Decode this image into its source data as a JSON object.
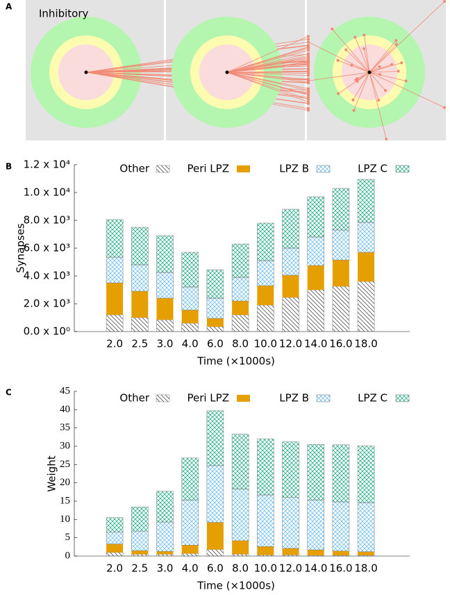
{
  "panel_a": {
    "label": "A",
    "caption": "Inhibitory"
  },
  "chart_data": [
    {
      "type": "stacked_bar",
      "panel_label": "B",
      "ylabel": "Synapses",
      "xlabel": "Time (×1000s)",
      "categories": [
        "2.0",
        "2.5",
        "3.0",
        "4.0",
        "6.0",
        "8.0",
        "10.0",
        "12.0",
        "14.0",
        "16.0",
        "18.0"
      ],
      "ylim": [
        0,
        12000
      ],
      "yticks": [
        {
          "value": 0,
          "label": "0.0 x 10⁰"
        },
        {
          "value": 2000,
          "label": "2.0 x 10³"
        },
        {
          "value": 4000,
          "label": "4.0 x 10³"
        },
        {
          "value": 6000,
          "label": "6.0 x 10³"
        },
        {
          "value": 8000,
          "label": "8.0 x 10³"
        },
        {
          "value": 10000,
          "label": "1.0 x 10⁴"
        },
        {
          "value": 12000,
          "label": "1.2 x 10⁴"
        }
      ],
      "series": [
        {
          "name": "Other",
          "color": "#333333",
          "hatch": "diagonal",
          "values": [
            1200,
            1000,
            850,
            600,
            350,
            1200,
            1900,
            2450,
            3000,
            3250,
            3600
          ]
        },
        {
          "name": "Peri LPZ",
          "color": "#e69f00",
          "hatch": "solid",
          "values": [
            2300,
            1900,
            1550,
            950,
            600,
            1000,
            1400,
            1600,
            1750,
            1900,
            2100
          ]
        },
        {
          "name": "LPZ B",
          "color": "#56b4e9",
          "hatch": "cross",
          "values": [
            1850,
            1900,
            1850,
            1650,
            1450,
            1700,
            1800,
            1950,
            2050,
            2150,
            2150
          ]
        },
        {
          "name": "LPZ C",
          "color": "#009e73",
          "hatch": "cross",
          "values": [
            2700,
            2700,
            2650,
            2500,
            2050,
            2400,
            2700,
            2800,
            2900,
            3000,
            3100
          ]
        }
      ]
    },
    {
      "type": "stacked_bar",
      "panel_label": "C",
      "ylabel": "Weight",
      "xlabel": "Time (×1000s)",
      "categories": [
        "2.0",
        "2.5",
        "3.0",
        "4.0",
        "6.0",
        "8.0",
        "10.0",
        "12.0",
        "14.0",
        "16.0",
        "18.0"
      ],
      "ylim": [
        0,
        45
      ],
      "yticks": [
        0,
        5,
        10,
        15,
        20,
        25,
        30,
        35,
        40,
        45
      ],
      "series": [
        {
          "name": "Other",
          "color": "#333333",
          "hatch": "diagonal",
          "values": [
            1.0,
            0.5,
            0.5,
            0.7,
            1.8,
            0.5,
            0.3,
            0.3,
            0.2,
            0.2,
            0.2
          ]
        },
        {
          "name": "Peri LPZ",
          "color": "#e69f00",
          "hatch": "solid",
          "values": [
            2.3,
            1.0,
            0.8,
            2.3,
            7.4,
            3.7,
            2.3,
            1.8,
            1.5,
            1.2,
            1.0
          ]
        },
        {
          "name": "LPZ B",
          "color": "#56b4e9",
          "hatch": "cross",
          "values": [
            3.2,
            5.3,
            8.0,
            12.3,
            15.5,
            14.1,
            14.1,
            13.9,
            13.6,
            13.4,
            13.4
          ]
        },
        {
          "name": "LPZ C",
          "color": "#009e73",
          "hatch": "cross",
          "values": [
            4.0,
            6.6,
            8.4,
            11.5,
            15.0,
            15.0,
            15.3,
            15.2,
            15.2,
            15.6,
            15.5
          ]
        }
      ]
    }
  ]
}
